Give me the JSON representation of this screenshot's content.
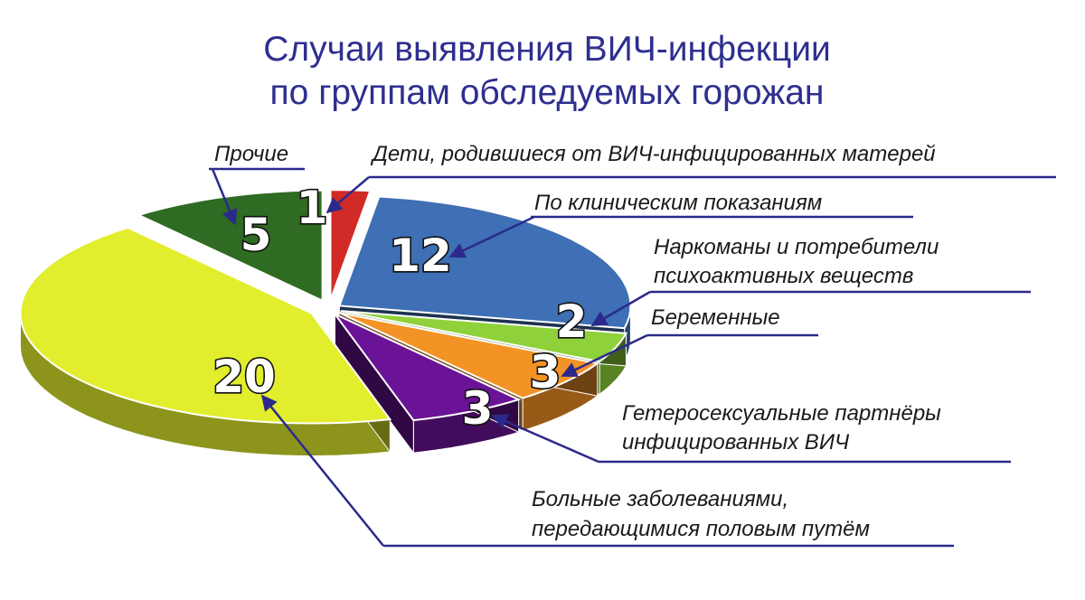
{
  "chart_data": {
    "type": "pie",
    "title": [
      "Случаи выявления ВИЧ-инфекции",
      "по группам обследуемых горожан"
    ],
    "slices": [
      {
        "value": 1,
        "label": [
          "Дети, родившиеся от ВИЧ-инфицированных матерей"
        ],
        "color": "#d22a26"
      },
      {
        "value": 12,
        "label": [
          "По клиническим показаниям"
        ],
        "color": "#3f6fb4"
      },
      {
        "value": 2,
        "label": [
          "Наркоманы и потребители",
          "психоактивных веществ"
        ],
        "color": "#8fd13a"
      },
      {
        "value": 3,
        "label": [
          "Беременные"
        ],
        "color": "#f39325"
      },
      {
        "value": 3,
        "label": [
          "Гетеросексуальные партнёры",
          "инфицированных ВИЧ"
        ],
        "color": "#6b1396"
      },
      {
        "value": 20,
        "label": [
          "Больные заболеваниями,",
          "передающимися половым путём"
        ],
        "color": "#e2ee2d"
      },
      {
        "value": 5,
        "label": [
          "Прочие"
        ],
        "color": "#2f6b22"
      }
    ]
  }
}
